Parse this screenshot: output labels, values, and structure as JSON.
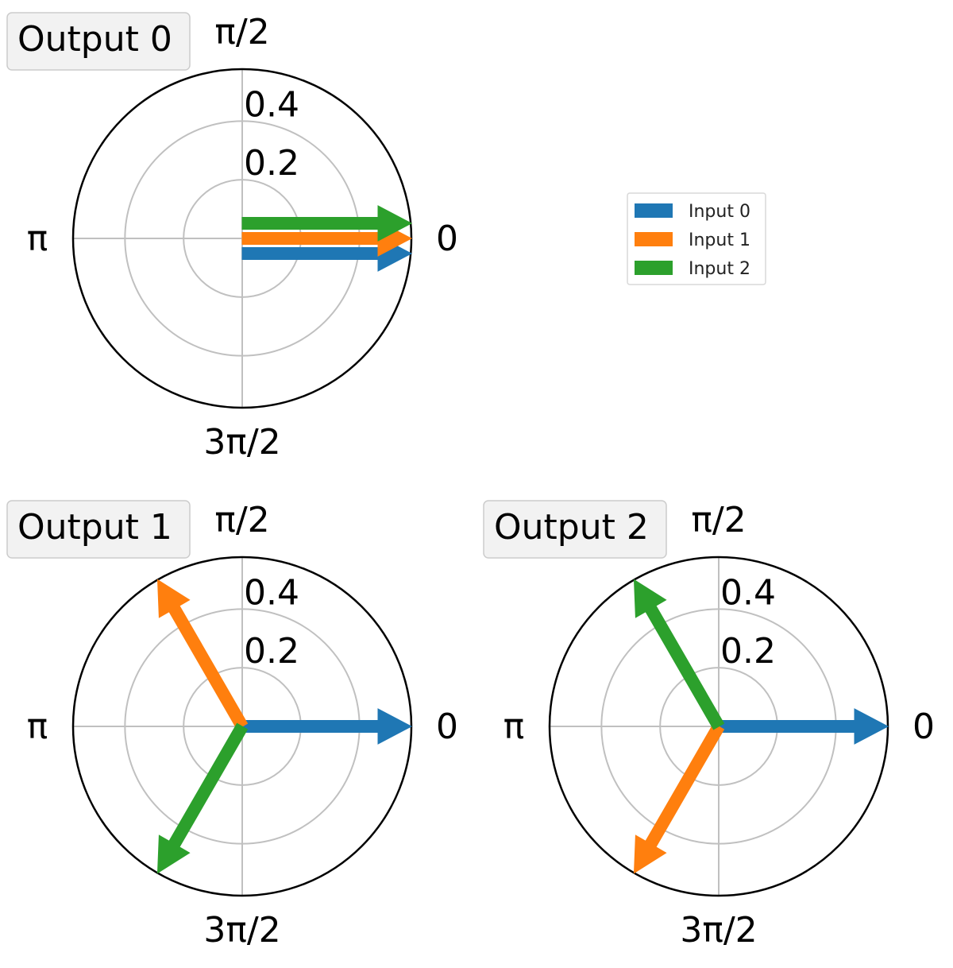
{
  "chart_data": [
    {
      "type": "polar-arrows",
      "title": "Output 0",
      "angle_ticks": [
        "0",
        "π/2",
        "π",
        "3π/2"
      ],
      "radial_ticks": [
        "0.2",
        "0.4"
      ],
      "rlim": [
        0,
        0.577
      ],
      "grid": true,
      "series": [
        {
          "name": "Input 0",
          "r": 0.577,
          "theta_deg": 0
        },
        {
          "name": "Input 1",
          "r": 0.577,
          "theta_deg": 0
        },
        {
          "name": "Input 2",
          "r": 0.577,
          "theta_deg": 0
        }
      ]
    },
    {
      "type": "polar-arrows",
      "title": "Output 1",
      "angle_ticks": [
        "0",
        "π/2",
        "π",
        "3π/2"
      ],
      "radial_ticks": [
        "0.2",
        "0.4"
      ],
      "rlim": [
        0,
        0.577
      ],
      "grid": true,
      "series": [
        {
          "name": "Input 0",
          "r": 0.577,
          "theta_deg": 0
        },
        {
          "name": "Input 1",
          "r": 0.577,
          "theta_deg": 120
        },
        {
          "name": "Input 2",
          "r": 0.577,
          "theta_deg": 240
        }
      ]
    },
    {
      "type": "polar-arrows",
      "title": "Output 2",
      "angle_ticks": [
        "0",
        "π/2",
        "π",
        "3π/2"
      ],
      "radial_ticks": [
        "0.2",
        "0.4"
      ],
      "rlim": [
        0,
        0.577
      ],
      "grid": true,
      "series": [
        {
          "name": "Input 0",
          "r": 0.577,
          "theta_deg": 0
        },
        {
          "name": "Input 1",
          "r": 0.577,
          "theta_deg": 240
        },
        {
          "name": "Input 2",
          "r": 0.577,
          "theta_deg": 120
        }
      ]
    }
  ],
  "legend": {
    "placement": "right",
    "entries": [
      {
        "label": "Input 0",
        "color": "#1f77b4"
      },
      {
        "label": "Input 1",
        "color": "#ff7f0e"
      },
      {
        "label": "Input 2",
        "color": "#2ca02c"
      }
    ]
  },
  "colors": {
    "Input 0": "#1f77b4",
    "Input 1": "#ff7f0e",
    "Input 2": "#2ca02c",
    "grid": "#c0c0c0",
    "frame": "#000000"
  }
}
